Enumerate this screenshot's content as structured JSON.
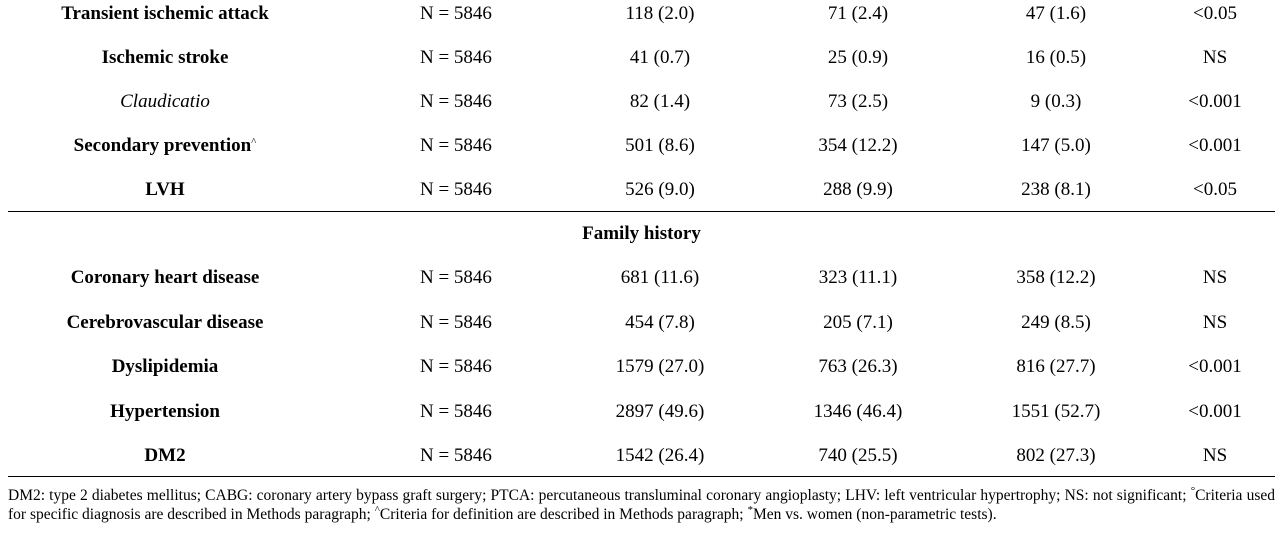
{
  "rows_top": [
    {
      "label": "Transient ischemic attack",
      "sup": "",
      "italic": false,
      "n": "N = 5846",
      "c1": "118 (2.0)",
      "c2": "71 (2.4)",
      "c3": "47 (1.6)",
      "p": "<0.05"
    },
    {
      "label": "Ischemic stroke",
      "sup": "",
      "italic": false,
      "n": "N = 5846",
      "c1": "41 (0.7)",
      "c2": "25 (0.9)",
      "c3": "16 (0.5)",
      "p": "NS"
    },
    {
      "label": "Claudicatio",
      "sup": "",
      "italic": true,
      "n": "N = 5846",
      "c1": "82 (1.4)",
      "c2": "73 (2.5)",
      "c3": "9 (0.3)",
      "p": "<0.001"
    },
    {
      "label": "Secondary prevention",
      "sup": "^",
      "italic": false,
      "n": "N = 5846",
      "c1": "501 (8.6)",
      "c2": "354 (12.2)",
      "c3": "147 (5.0)",
      "p": "<0.001"
    },
    {
      "label": "LVH",
      "sup": "",
      "italic": false,
      "n": "N = 5846",
      "c1": "526 (9.0)",
      "c2": "288 (9.9)",
      "c3": "238 (8.1)",
      "p": "<0.05"
    }
  ],
  "section_title": "Family history",
  "rows_bottom": [
    {
      "label": "Coronary heart disease",
      "sup": "",
      "italic": false,
      "n": "N = 5846",
      "c1": "681 (11.6)",
      "c2": "323 (11.1)",
      "c3": "358 (12.2)",
      "p": "NS"
    },
    {
      "label": "Cerebrovascular disease",
      "sup": "",
      "italic": false,
      "n": "N = 5846",
      "c1": "454 (7.8)",
      "c2": "205 (7.1)",
      "c3": "249 (8.5)",
      "p": "NS"
    },
    {
      "label": "Dyslipidemia",
      "sup": "",
      "italic": false,
      "n": "N = 5846",
      "c1": "1579 (27.0)",
      "c2": "763 (26.3)",
      "c3": "816 (27.7)",
      "p": "<0.001"
    },
    {
      "label": "Hypertension",
      "sup": "",
      "italic": false,
      "n": "N = 5846",
      "c1": "2897 (49.6)",
      "c2": "1346 (46.4)",
      "c3": "1551 (52.7)",
      "p": "<0.001"
    },
    {
      "label": "DM2",
      "sup": "",
      "italic": false,
      "n": "N = 5846",
      "c1": "1542 (26.4)",
      "c2": "740 (25.5)",
      "c3": "802 (27.3)",
      "p": "NS"
    }
  ],
  "footnote": {
    "text1": "DM2: type 2 diabetes mellitus; CABG: coronary artery bypass graft surgery; PTCA: percutaneous transluminal coronary angioplasty; LHV: left ventricular hypertrophy; NS: not significant; ",
    "sup1": "°",
    "text2": "Criteria used for specific diagnosis are described in Methods paragraph; ",
    "sup2": "^",
    "text3": "Criteria for definition are described in Methods paragraph; ",
    "sup3": "*",
    "text4": "Men vs. women (non-parametric tests)."
  }
}
